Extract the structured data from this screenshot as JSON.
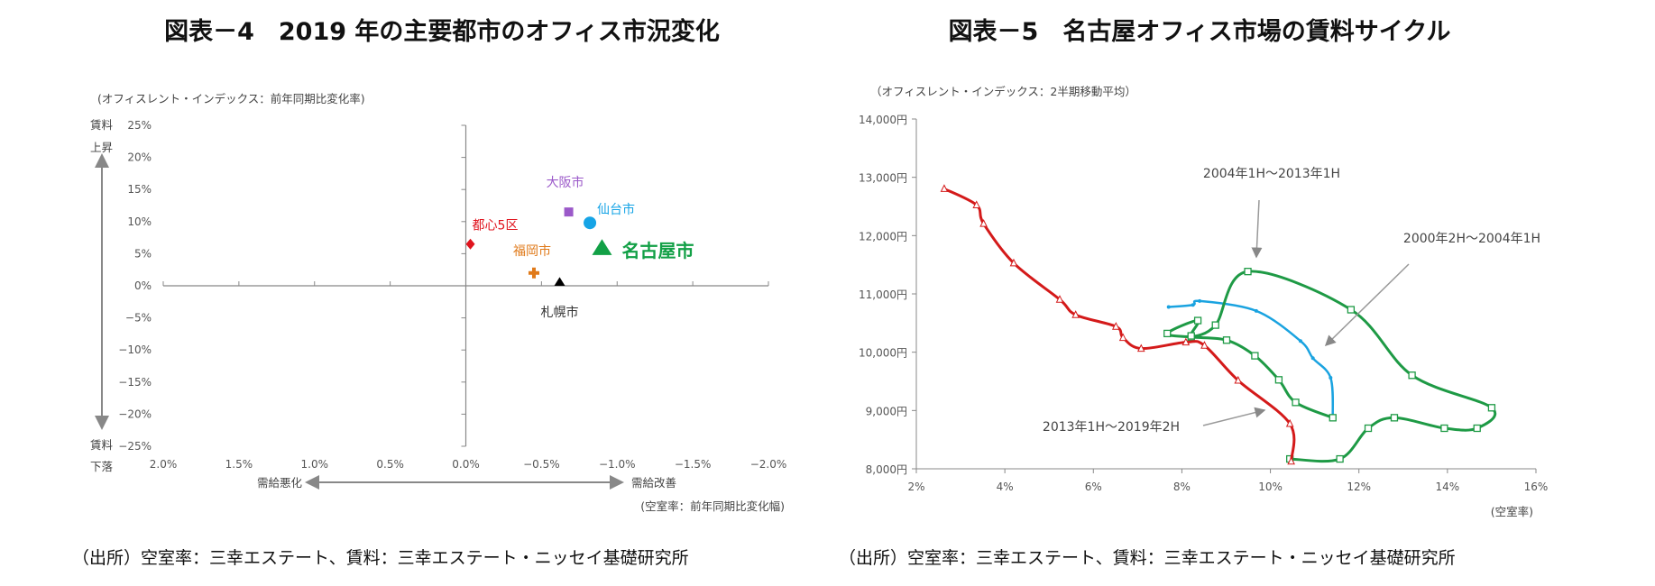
{
  "chart_data": [
    {
      "type": "scatter",
      "title": "図表－4　2019 年の主要都市のオフィス市況変化",
      "ylabel": "(オフィスレント・インデックス：前年同期比変化率)",
      "xlabel": "(空室率：前年同期比変化幅)",
      "y_top_label": [
        "賃料",
        "上昇"
      ],
      "y_bottom_label": [
        "賃料",
        "下落"
      ],
      "x_left_label": "需給悪化",
      "x_right_label": "需給改善",
      "xlim": [
        2.0,
        -2.0
      ],
      "ylim": [
        -25,
        25
      ],
      "x_reversed": true,
      "x_ticks": [
        "2.0%",
        "1.5%",
        "1.0%",
        "0.5%",
        "0.0%",
        "−0.5%",
        "−1.0%",
        "−1.5%",
        "−2.0%"
      ],
      "y_ticks": [
        "25%",
        "20%",
        "15%",
        "10%",
        "5%",
        "0%",
        "−5%",
        "−10%",
        "−15%",
        "−20%",
        "−25%"
      ],
      "points": [
        {
          "label": "都心5区",
          "x": -0.03,
          "y": 6.5,
          "marker": "diamond",
          "color": "#e0141e"
        },
        {
          "label": "大阪市",
          "x": -0.68,
          "y": 11.5,
          "marker": "square",
          "color": "#9b59c9"
        },
        {
          "label": "仙台市",
          "x": -0.82,
          "y": 9.8,
          "marker": "circle",
          "color": "#16a4e6"
        },
        {
          "label": "名古屋市",
          "x": -0.9,
          "y": 4.8,
          "marker": "triangle",
          "color": "#12a046"
        },
        {
          "label": "福岡市",
          "x": -0.45,
          "y": 2.0,
          "marker": "cross",
          "color": "#e07a1a"
        },
        {
          "label": "札幌市",
          "x": -0.62,
          "y": 0.0,
          "marker": "triangle",
          "color": "#000000"
        }
      ],
      "source": "（出所）空室率：三幸エステート、賃料：三幸エステート・ニッセイ基礎研究所"
    },
    {
      "type": "line",
      "title": "図表－5　名古屋オフィス市場の賃料サイクル",
      "ylabel": "（オフィスレント・インデックス：2半期移動平均）",
      "xlabel": "(空室率)",
      "xlim": [
        2,
        16
      ],
      "ylim": [
        8000,
        14000
      ],
      "x_ticks": [
        "2%",
        "4%",
        "6%",
        "8%",
        "10%",
        "12%",
        "14%",
        "16%"
      ],
      "y_ticks": [
        "14,000円",
        "13,000円",
        "12,000円",
        "11,000円",
        "10,000円",
        "9,000円",
        "8,000円"
      ],
      "series": [
        {
          "name": "2000年2H～2004年1H",
          "color": "#1aa3e0",
          "label_color": "#2a6db5",
          "x": [
            7.7,
            8.25,
            8.4,
            9.68,
            10.68,
            10.96,
            11.36,
            11.41
          ],
          "y": [
            10775,
            10811,
            10878,
            10708,
            10192,
            9898,
            9562,
            8876
          ]
        },
        {
          "name": "2004年1H～2013年1H",
          "color": "#1e9a45",
          "label_color": "#1e9a45",
          "x": [
            11.41,
            10.57,
            10.19,
            9.65,
            9.01,
            8.21,
            7.67,
            8.36,
            8.21,
            8.76,
            9.49,
            11.82,
            13.2,
            15.0,
            14.67,
            13.93,
            12.8,
            12.21,
            11.57,
            10.44
          ],
          "y": [
            8876,
            9139,
            9526,
            9939,
            10207,
            10259,
            10321,
            10543,
            10280,
            10465,
            11384,
            10729,
            9604,
            9047,
            8696,
            8696,
            8876,
            8696,
            8169,
            8169
          ]
        },
        {
          "name": "2013年1H～2019年2H",
          "color": "#d41a1a",
          "label_color": "#d41a1a",
          "x": [
            10.47,
            10.44,
            9.27,
            8.51,
            8.09,
            7.08,
            6.67,
            6.51,
            5.6,
            5.24,
            4.2,
            3.52,
            3.36,
            2.63
          ],
          "y": [
            8128,
            8773,
            9516,
            10115,
            10171,
            10063,
            10249,
            10440,
            10641,
            10904,
            11528,
            12204,
            12524,
            12803
          ]
        }
      ],
      "source": "（出所）空室率：三幸エステート、賃料：三幸エステート・ニッセイ基礎研究所"
    }
  ]
}
